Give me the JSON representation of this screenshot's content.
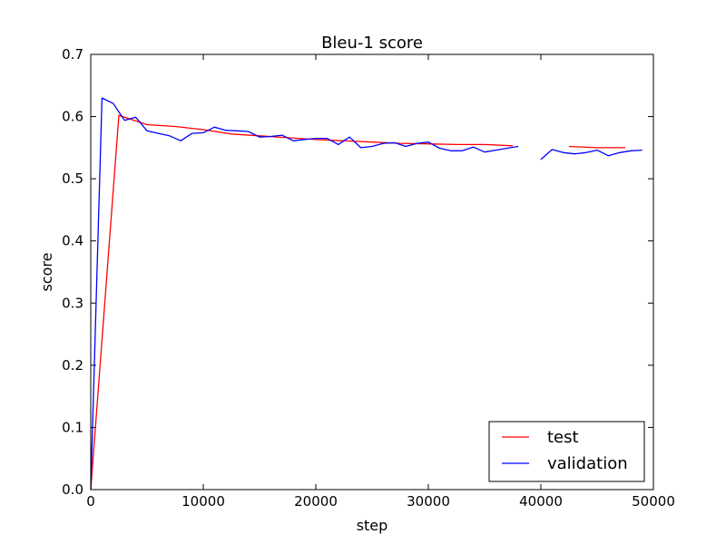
{
  "chart_data": {
    "type": "line",
    "title": "Bleu-1 score",
    "xlabel": "step",
    "ylabel": "score",
    "xlim": [
      0,
      50000
    ],
    "ylim": [
      0,
      0.7
    ],
    "xticks": [
      0,
      10000,
      20000,
      30000,
      40000,
      50000
    ],
    "xtick_labels": [
      "0",
      "10000",
      "20000",
      "30000",
      "40000",
      "50000"
    ],
    "yticks": [
      0,
      0.1,
      0.2,
      0.3,
      0.4,
      0.5,
      0.6,
      0.7
    ],
    "ytick_labels": [
      "0.0",
      "0.1",
      "0.2",
      "0.3",
      "0.4",
      "0.5",
      "0.6",
      "0.7"
    ],
    "grid": false,
    "legend_position": "lower-right",
    "series": [
      {
        "name": "test",
        "color": "#ff0000",
        "segments": [
          [
            [
              0,
              0.0
            ],
            [
              2500,
              0.602
            ],
            [
              5000,
              0.587
            ],
            [
              7500,
              0.584
            ],
            [
              10000,
              0.579
            ],
            [
              12500,
              0.572
            ],
            [
              15000,
              0.569
            ],
            [
              17500,
              0.566
            ],
            [
              20000,
              0.563
            ],
            [
              22500,
              0.561
            ],
            [
              25000,
              0.559
            ],
            [
              27500,
              0.557
            ],
            [
              30000,
              0.556
            ],
            [
              32500,
              0.555
            ],
            [
              35000,
              0.555
            ],
            [
              37500,
              0.553
            ]
          ],
          [
            [
              42500,
              0.552
            ],
            [
              45000,
              0.55
            ],
            [
              47500,
              0.55
            ]
          ]
        ]
      },
      {
        "name": "validation",
        "color": "#0000ff",
        "segments": [
          [
            [
              0,
              0.0
            ],
            [
              1000,
              0.63
            ],
            [
              2000,
              0.621
            ],
            [
              3000,
              0.594
            ],
            [
              4000,
              0.599
            ],
            [
              5000,
              0.577
            ],
            [
              6000,
              0.573
            ],
            [
              7000,
              0.569
            ],
            [
              8000,
              0.561
            ],
            [
              9000,
              0.573
            ],
            [
              10000,
              0.574
            ],
            [
              11000,
              0.583
            ],
            [
              12000,
              0.578
            ],
            [
              13000,
              0.577
            ],
            [
              14000,
              0.576
            ],
            [
              15000,
              0.567
            ],
            [
              16000,
              0.568
            ],
            [
              17000,
              0.57
            ],
            [
              18000,
              0.561
            ],
            [
              19000,
              0.563
            ],
            [
              20000,
              0.565
            ],
            [
              21000,
              0.565
            ],
            [
              22000,
              0.555
            ],
            [
              23000,
              0.567
            ],
            [
              24000,
              0.55
            ],
            [
              25000,
              0.552
            ],
            [
              26000,
              0.557
            ],
            [
              27000,
              0.558
            ],
            [
              28000,
              0.552
            ],
            [
              29000,
              0.557
            ],
            [
              30000,
              0.559
            ],
            [
              31000,
              0.549
            ],
            [
              32000,
              0.545
            ],
            [
              33000,
              0.545
            ],
            [
              34000,
              0.551
            ],
            [
              35000,
              0.543
            ],
            [
              36000,
              0.546
            ],
            [
              37000,
              0.549
            ],
            [
              38000,
              0.552
            ]
          ],
          [
            [
              40000,
              0.531
            ],
            [
              41000,
              0.547
            ],
            [
              42000,
              0.542
            ],
            [
              43000,
              0.54
            ],
            [
              44000,
              0.542
            ],
            [
              45000,
              0.546
            ],
            [
              46000,
              0.537
            ],
            [
              47000,
              0.542
            ],
            [
              48000,
              0.545
            ],
            [
              49000,
              0.546
            ]
          ]
        ]
      }
    ]
  }
}
